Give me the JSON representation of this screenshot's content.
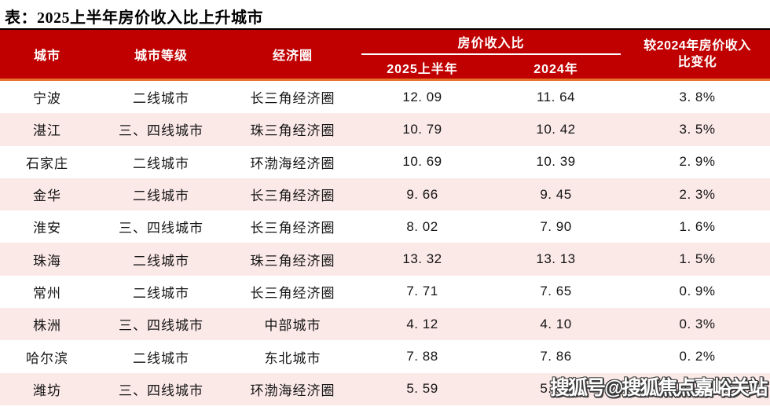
{
  "title": "表：2025上半年房价收入比上升城市",
  "colors": {
    "header_bg": "#c00000",
    "header_text": "#ffffff",
    "accent_line_orange": "#e8742c",
    "header_top_border": "#000000",
    "row_alt_bg": "#fbe9e8"
  },
  "table": {
    "headers": {
      "city": "城市",
      "tier": "城市等级",
      "circle": "经济圈",
      "ratio_group": "房价收入比",
      "ratio_2025": "2025上半年",
      "ratio_2024": "2024年",
      "change_lines": [
        "较2024年房价收入",
        "比变化"
      ]
    },
    "rows": [
      [
        "宁波",
        "二线城市",
        "长三角经济圈",
        "12. 09",
        "11. 64",
        "3. 8%"
      ],
      [
        "湛江",
        "三、四线城市",
        "珠三角经济圈",
        "10. 79",
        "10. 42",
        "3. 5%"
      ],
      [
        "石家庄",
        "二线城市",
        "环渤海经济圈",
        "10. 69",
        "10. 39",
        "2. 9%"
      ],
      [
        "金华",
        "二线城市",
        "长三角经济圈",
        "9. 66",
        "9. 45",
        "2. 3%"
      ],
      [
        "淮安",
        "三、四线城市",
        "长三角经济圈",
        "8. 02",
        "7. 90",
        "1. 6%"
      ],
      [
        "珠海",
        "二线城市",
        "珠三角经济圈",
        "13. 32",
        "13. 13",
        "1. 5%"
      ],
      [
        "常州",
        "二线城市",
        "长三角经济圈",
        "7. 71",
        "7. 65",
        "0. 9%"
      ],
      [
        "株洲",
        "三、四线城市",
        "中部城市",
        "4. 12",
        "4. 10",
        "0. 3%"
      ],
      [
        "哈尔滨",
        "二线城市",
        "东北城市",
        "7. 88",
        "7. 86",
        "0. 2%"
      ],
      [
        "潍坊",
        "三、四线城市",
        "环渤海经济圈",
        "5. 59",
        "5. 58",
        "0. 2%"
      ]
    ]
  },
  "watermark": "搜狐号@搜狐焦点嘉峪关站",
  "chart_data": {
    "type": "table",
    "title": "表：2025上半年房价收入比上升城市",
    "columns": [
      "城市",
      "城市等级",
      "经济圈",
      "房价收入比 2025上半年",
      "房价收入比 2024年",
      "较2024年房价收入比变化"
    ],
    "cities": [
      "宁波",
      "湛江",
      "石家庄",
      "金华",
      "淮安",
      "珠海",
      "常州",
      "株洲",
      "哈尔滨",
      "潍坊"
    ],
    "tiers": [
      "二线城市",
      "三、四线城市",
      "二线城市",
      "二线城市",
      "三、四线城市",
      "二线城市",
      "二线城市",
      "三、四线城市",
      "二线城市",
      "三、四线城市"
    ],
    "economic_zones": [
      "长三角经济圈",
      "珠三角经济圈",
      "环渤海经济圈",
      "长三角经济圈",
      "长三角经济圈",
      "珠三角经济圈",
      "长三角经济圈",
      "中部城市",
      "东北城市",
      "环渤海经济圈"
    ],
    "ratio_2025_h1": [
      12.09,
      10.79,
      10.69,
      9.66,
      8.02,
      13.32,
      7.71,
      4.12,
      7.88,
      5.59
    ],
    "ratio_2024": [
      11.64,
      10.42,
      10.39,
      9.45,
      7.9,
      13.13,
      7.65,
      4.1,
      7.86,
      5.58
    ],
    "change_pct": [
      3.8,
      3.5,
      2.9,
      2.3,
      1.6,
      1.5,
      0.9,
      0.3,
      0.2,
      0.2
    ]
  }
}
